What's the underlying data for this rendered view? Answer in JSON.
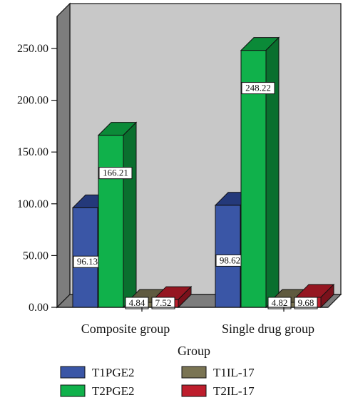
{
  "chart_data": {
    "type": "bar",
    "xlabel": "Group",
    "ylabel": "",
    "ylim": [
      0,
      250
    ],
    "yticks": [
      "0.00",
      "50.00",
      "100.00",
      "150.00",
      "200.00",
      "250.00"
    ],
    "categories": [
      "Composite group",
      "Single drug group"
    ],
    "series": [
      {
        "name": "T1PGE2",
        "values": [
          96.13,
          98.62
        ],
        "labels": [
          "96.13",
          "98.62"
        ]
      },
      {
        "name": "T2PGE2",
        "values": [
          166.21,
          248.22
        ],
        "labels": [
          "166.21",
          "248.22"
        ]
      },
      {
        "name": "T1IL-17",
        "values": [
          4.84,
          4.82
        ],
        "labels": [
          "4.84",
          "4.82"
        ]
      },
      {
        "name": "T2IL-17",
        "values": [
          7.52,
          9.68
        ],
        "labels": [
          "7.52",
          "9.68"
        ]
      }
    ],
    "colors": {
      "T1PGE2": {
        "front": "#3a56a6",
        "top": "#24397a",
        "side": "#1c2d63"
      },
      "T2PGE2": {
        "front": "#10b14b",
        "top": "#0b8a38",
        "side": "#0a6f2e"
      },
      "T1IL-17": {
        "front": "#7a7453",
        "top": "#5f5a3f",
        "side": "#4c4833"
      },
      "T2IL-17": {
        "front": "#be1e2d",
        "top": "#951621",
        "side": "#7a111b"
      }
    },
    "background": {
      "wall": "#c8c8c8",
      "left_wall": "#7d7d7d",
      "floor": "#7d7d7d"
    },
    "grid": false,
    "legend_position": "bottom"
  }
}
